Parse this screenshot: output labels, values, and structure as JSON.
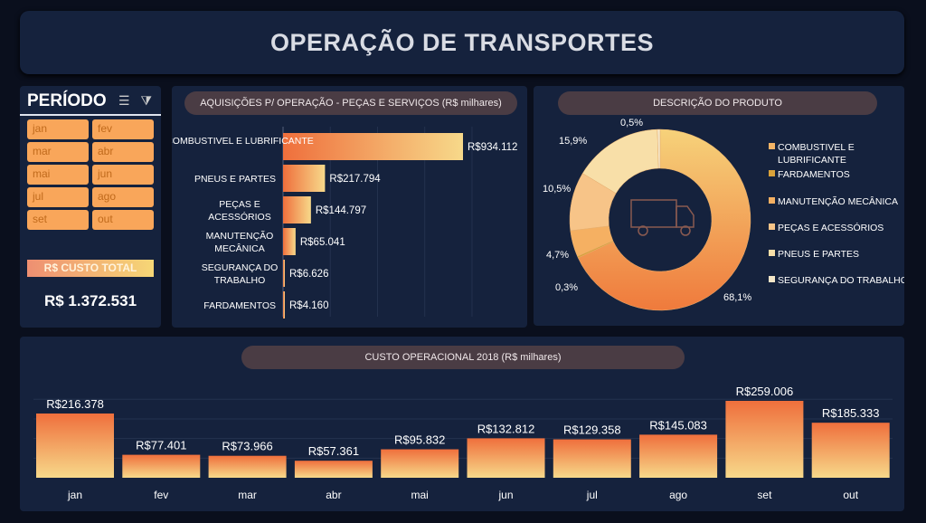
{
  "header": {
    "title": "OPERAÇÃO DE TRANSPORTES"
  },
  "periodo": {
    "title": "PERÍODO",
    "icons": [
      "multi-select-icon",
      "clear-filter-icon"
    ],
    "months": [
      "jan",
      "fev",
      "mar",
      "abr",
      "mai",
      "jun",
      "jul",
      "ago",
      "set",
      "out"
    ],
    "total_label": "R$ CUSTO TOTAL",
    "total_value": "R$ 1.372.531"
  },
  "colors": {
    "background": "#0a0f1d",
    "panel": "#15223d",
    "bar_start": "#ef6f3c",
    "bar_end": "#f7d98a",
    "month_button": "#f9a65a"
  },
  "chart_data": [
    {
      "type": "bar",
      "orientation": "horizontal",
      "title": "AQUISIÇÕES P/ OPERAÇÃO - PEÇAS E SERVIÇOS (R$ milhares)",
      "categories": [
        "COMBUSTIVEL E LUBRIFICANTE",
        "PNEUS E PARTES",
        "PEÇAS E ACESSÓRIOS",
        "MANUTENÇÃO MECÂNICA",
        "SEGURANÇA DO TRABALHO",
        "FARDAMENTOS"
      ],
      "values": [
        934.112,
        217.794,
        144.797,
        65.041,
        6.626,
        4.16
      ],
      "labels": [
        "R$934.112",
        "R$217.794",
        "R$144.797",
        "R$65.041",
        "R$6.626",
        "R$4.160"
      ],
      "grid": true
    },
    {
      "type": "pie",
      "variant": "donut",
      "title": "DESCRIÇÃO DO PRODUTO",
      "center_icon": "truck-icon",
      "slices": [
        {
          "name": "COMBUSTIVEL E LUBRIFICANTE",
          "value": 68.1,
          "label": "68,1%",
          "color": "#f3b466"
        },
        {
          "name": "FARDAMENTOS",
          "value": 0.3,
          "label": "0,3%",
          "color": "#d9a23a"
        },
        {
          "name": "MANUTENÇÃO MECÂNICA",
          "value": 4.7,
          "label": "4,7%",
          "color": "#f5b062"
        },
        {
          "name": "PEÇAS E ACESSÓRIOS",
          "value": 10.5,
          "label": "10,5%",
          "color": "#f7c488"
        },
        {
          "name": "PNEUS E PARTES",
          "value": 15.9,
          "label": "15,9%",
          "color": "#f8dfa8"
        },
        {
          "name": "SEGURANÇA DO TRABALHO",
          "value": 0.5,
          "label": "0,5%",
          "color": "#f4e6c8"
        }
      ],
      "legend": "right"
    },
    {
      "type": "bar",
      "title": "CUSTO OPERACIONAL 2018 (R$ milhares)",
      "categories": [
        "jan",
        "fev",
        "mar",
        "abr",
        "mai",
        "jun",
        "jul",
        "ago",
        "set",
        "out"
      ],
      "values": [
        216.378,
        77.401,
        73.966,
        57.361,
        95.832,
        132.812,
        129.358,
        145.083,
        259.006,
        185.333
      ],
      "labels": [
        "R$216.378",
        "R$77.401",
        "R$73.966",
        "R$57.361",
        "R$95.832",
        "R$132.812",
        "R$129.358",
        "R$145.083",
        "R$259.006",
        "R$185.333"
      ],
      "grid": true
    }
  ]
}
